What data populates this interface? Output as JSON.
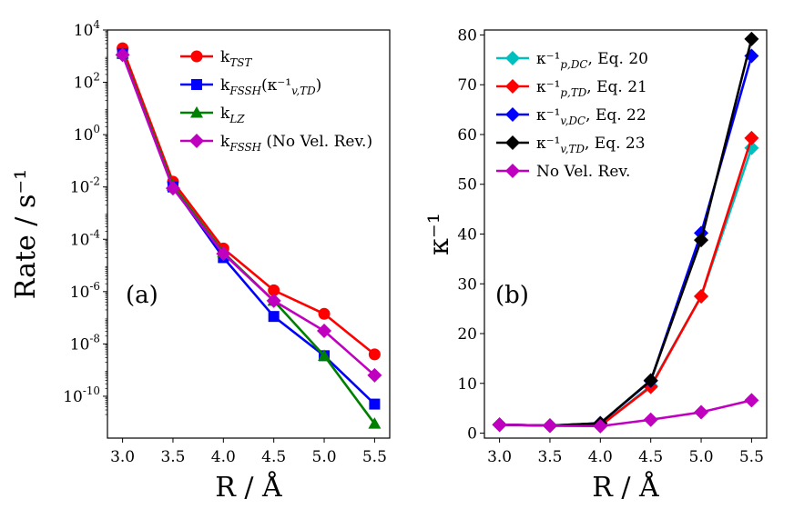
{
  "chart_data": [
    {
      "type": "line",
      "panel_label": "(a)",
      "x": [
        3.0,
        3.5,
        4.0,
        4.5,
        5.0,
        5.5
      ],
      "x_tick_labels": [
        "3.0",
        "3.5",
        "4.0",
        "4.5",
        "5.0",
        "5.5"
      ],
      "xlim": [
        2.85,
        5.65
      ],
      "xlabel": "R / Å",
      "ylabel": "Rate / s⁻¹",
      "yscale": "log",
      "ylim_log10": [
        -11.6,
        4
      ],
      "y_tick_exponents": [
        4,
        2,
        0,
        -2,
        -4,
        -6,
        -8,
        -10
      ],
      "y_tick_labels": [
        "10^4",
        "10^2",
        "10^0",
        "10^-2",
        "10^-4",
        "10^-6",
        "10^-8",
        "10^-10"
      ],
      "legend_position": "top-right",
      "series": [
        {
          "name": "k_TST",
          "color": "#ff0000",
          "marker": "circle",
          "log10_values": [
            3.3,
            -1.8,
            -4.35,
            -5.95,
            -6.85,
            -8.4
          ]
        },
        {
          "name": "k_FSSH(κ⁻¹_v,TD)",
          "color": "#0000ff",
          "marker": "square",
          "log10_values": [
            3.1,
            -2.0,
            -4.7,
            -6.95,
            -8.45,
            -10.3
          ]
        },
        {
          "name": "k_LZ",
          "color": "#008000",
          "marker": "triangle",
          "log10_values": [
            3.1,
            -1.95,
            -4.5,
            -6.35,
            -8.45,
            -11.05
          ]
        },
        {
          "name": "k_FSSH (No Vel. Rev.)",
          "color": "#bf00bf",
          "marker": "diamond",
          "log10_values": [
            3.05,
            -2.05,
            -4.55,
            -6.35,
            -7.5,
            -9.2
          ]
        }
      ]
    },
    {
      "type": "line",
      "panel_label": "(b)",
      "x": [
        3.0,
        3.5,
        4.0,
        4.5,
        5.0,
        5.5
      ],
      "x_tick_labels": [
        "3.0",
        "3.5",
        "4.0",
        "4.5",
        "5.0",
        "5.5"
      ],
      "xlim": [
        2.85,
        5.65
      ],
      "xlabel": "R / Å",
      "ylabel": "κ⁻¹",
      "ylim": [
        -1,
        81
      ],
      "y_ticks": [
        0,
        10,
        20,
        30,
        40,
        50,
        60,
        70,
        80
      ],
      "y_tick_labels": [
        "0",
        "10",
        "20",
        "30",
        "40",
        "50",
        "60",
        "70",
        "80"
      ],
      "legend_position": "top-left",
      "series": [
        {
          "name": "κ⁻¹_p,DC, Eq. 20",
          "color": "#00bfbf",
          "marker": "diamond",
          "values": [
            1.7,
            1.5,
            1.5,
            9.5,
            27.5,
            57.3
          ]
        },
        {
          "name": "κ⁻¹_p,TD, Eq. 21",
          "color": "#ff0000",
          "marker": "diamond",
          "values": [
            1.7,
            1.5,
            1.5,
            9.3,
            27.5,
            59.3
          ]
        },
        {
          "name": "κ⁻¹_v,DC, Eq. 22",
          "color": "#0000ff",
          "marker": "diamond",
          "values": [
            1.7,
            1.5,
            2.0,
            10.5,
            40.2,
            75.8
          ]
        },
        {
          "name": "κ⁻¹_v,TD, Eq. 23",
          "color": "#000000",
          "marker": "diamond",
          "values": [
            1.7,
            1.5,
            2.0,
            10.6,
            38.8,
            79.2
          ]
        },
        {
          "name": "No Vel. Rev.",
          "color": "#bf00bf",
          "marker": "diamond",
          "values": [
            1.7,
            1.5,
            1.4,
            2.7,
            4.2,
            6.6
          ]
        }
      ]
    }
  ]
}
